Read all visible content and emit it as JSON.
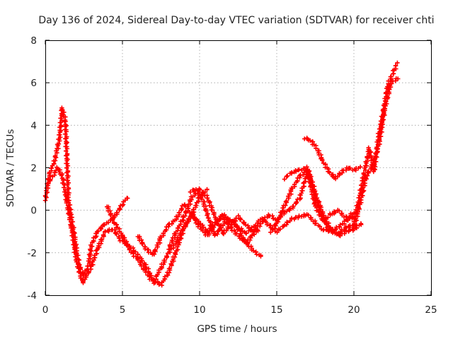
{
  "chart_data": {
    "type": "scatter",
    "title": "Day 136 of 2024, Sidereal Day-to-day VTEC variation (SDTVAR) for receiver chti",
    "xlabel": "GPS time / hours",
    "ylabel": "SDTVAR / TECUs",
    "xlim": [
      0,
      25
    ],
    "ylim": [
      -4,
      8
    ],
    "xticks": [
      0,
      5,
      10,
      15,
      20,
      25
    ],
    "yticks": [
      -4,
      -2,
      0,
      2,
      4,
      6,
      8
    ],
    "grid": true,
    "marker": "plus",
    "color": "#ff0000",
    "series": [
      {
        "name": "s1",
        "x": [
          0.0,
          0.3,
          0.6,
          0.9,
          1.1,
          1.3,
          1.5,
          1.8,
          2.0,
          2.2,
          2.5,
          2.8,
          3.0,
          3.4,
          3.8,
          4.2,
          4.6,
          5.0,
          5.3
        ],
        "y": [
          0.5,
          1.8,
          2.3,
          3.3,
          4.8,
          4.2,
          0.5,
          -0.8,
          -1.8,
          -2.6,
          -3.1,
          -2.6,
          -1.6,
          -1.0,
          -0.7,
          -0.5,
          -0.2,
          0.3,
          0.6
        ]
      },
      {
        "name": "s2",
        "x": [
          0.2,
          0.5,
          0.8,
          1.1,
          1.4,
          1.7,
          2.0,
          2.4,
          2.9,
          3.4,
          3.9,
          4.4,
          4.9,
          5.5,
          6.0,
          6.5,
          7.0,
          7.5,
          8.0,
          8.5,
          9.0,
          9.5,
          10.0,
          10.5
        ],
        "y": [
          1.3,
          1.6,
          2.0,
          1.6,
          0.4,
          -0.8,
          -2.3,
          -3.4,
          -2.8,
          -1.8,
          -1.0,
          -0.9,
          -1.4,
          -1.7,
          -2.1,
          -2.6,
          -3.3,
          -3.5,
          -2.9,
          -1.9,
          -0.8,
          -0.2,
          0.6,
          1.0
        ]
      },
      {
        "name": "s3",
        "x": [
          4.0,
          4.5,
          5.0,
          5.5,
          6.0,
          6.5,
          7.0,
          7.5,
          8.0,
          8.5,
          9.0,
          9.5,
          10.0,
          10.5,
          11.0,
          11.5,
          12.0,
          12.5,
          13.0,
          13.5,
          14.0
        ],
        "y": [
          0.2,
          -0.6,
          -1.2,
          -1.9,
          -2.3,
          -2.9,
          -3.4,
          -2.7,
          -2.0,
          -1.5,
          -0.8,
          -0.2,
          -0.6,
          -1.0,
          -0.6,
          -0.3,
          -0.8,
          -1.2,
          -1.5,
          -1.9,
          -2.2
        ]
      },
      {
        "name": "s4",
        "x": [
          6.0,
          6.5,
          7.0,
          7.5,
          8.0,
          8.5,
          9.0,
          9.5,
          10.0,
          10.5,
          11.0,
          11.5,
          12.0,
          12.5,
          13.0,
          13.5,
          14.0,
          14.5,
          15.0,
          15.5,
          16.0,
          16.5,
          17.0,
          17.5,
          18.0,
          18.5,
          19.0,
          19.5,
          20.0
        ],
        "y": [
          -1.2,
          -1.8,
          -2.1,
          -1.3,
          -0.7,
          -0.4,
          0.3,
          -0.2,
          -0.8,
          -1.2,
          -0.7,
          -0.2,
          -0.5,
          -0.8,
          -1.1,
          -0.8,
          -0.4,
          -0.7,
          -1.0,
          -0.7,
          -0.4,
          -0.3,
          -0.2,
          -0.6,
          -0.9,
          -1.0,
          -0.8,
          -0.5,
          -0.3
        ]
      },
      {
        "name": "s5",
        "x": [
          8.0,
          8.5,
          9.0,
          9.5,
          10.0,
          10.5,
          11.0,
          11.5,
          12.0,
          12.5,
          13.0,
          13.5,
          14.0,
          14.5,
          15.0,
          15.5,
          16.0,
          16.5,
          17.0,
          17.5,
          18.0,
          18.5,
          19.0,
          19.5,
          20.0
        ],
        "y": [
          -1.8,
          -1.0,
          -0.3,
          0.6,
          1.0,
          0.6,
          -0.3,
          -1.1,
          -0.7,
          -0.3,
          -0.7,
          -1.0,
          -0.6,
          -0.2,
          -0.5,
          -0.1,
          0.1,
          0.6,
          1.8,
          0.2,
          -0.5,
          -0.2,
          0.0,
          -0.4,
          -0.1
        ]
      },
      {
        "name": "s6",
        "x": [
          14.6,
          15.0,
          15.5,
          16.0,
          16.5,
          17.0,
          17.5,
          18.0,
          18.5,
          19.0,
          19.5,
          20.0
        ],
        "y": [
          -1.0,
          -0.6,
          0.2,
          1.0,
          1.6,
          1.9,
          0.6,
          -0.4,
          -1.0,
          -1.1,
          -0.8,
          -0.7
        ]
      },
      {
        "name": "s7",
        "x": [
          15.5,
          16.0,
          16.5,
          17.0,
          17.2,
          17.6,
          18.0,
          18.5,
          19.0,
          19.5,
          20.0,
          20.5
        ],
        "y": [
          1.5,
          1.8,
          1.9,
          2.0,
          1.5,
          0.6,
          -0.2,
          -0.9,
          -1.2,
          -1.0,
          -0.9,
          -0.6
        ]
      },
      {
        "name": "s8",
        "x": [
          16.8,
          17.2,
          17.6,
          18.0,
          18.4,
          18.8,
          19.2,
          19.6,
          20.0,
          20.4
        ],
        "y": [
          3.4,
          3.3,
          2.9,
          2.3,
          1.8,
          1.5,
          1.8,
          2.0,
          1.9,
          2.0
        ]
      },
      {
        "name": "s9",
        "x": [
          20.0,
          20.3,
          20.6,
          21.0,
          21.3,
          21.6,
          21.9,
          22.2,
          22.5,
          22.8
        ],
        "y": [
          -0.5,
          0.4,
          1.5,
          2.9,
          1.8,
          3.5,
          4.6,
          5.9,
          6.4,
          6.9
        ]
      },
      {
        "name": "s10",
        "x": [
          20.0,
          20.4,
          20.8,
          21.2,
          21.6,
          22.0,
          22.4,
          22.8
        ],
        "y": [
          -0.8,
          0.3,
          1.6,
          2.1,
          3.0,
          4.8,
          6.0,
          6.2
        ]
      },
      {
        "name": "s11",
        "x": [
          9.4,
          9.8,
          10.2,
          10.6,
          11.0,
          11.4,
          11.8,
          12.2,
          12.6,
          13.0,
          13.4,
          13.8
        ],
        "y": [
          0.9,
          1.0,
          0.5,
          -0.4,
          -1.2,
          -0.8,
          -0.4,
          -0.5,
          -1.0,
          -1.6,
          -1.2,
          -0.9
        ]
      }
    ]
  }
}
